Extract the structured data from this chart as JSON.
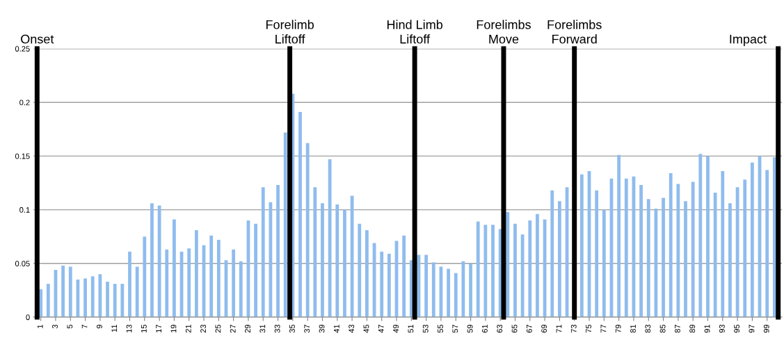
{
  "chart_data": {
    "type": "bar",
    "x": [
      1,
      2,
      3,
      4,
      5,
      6,
      7,
      8,
      9,
      10,
      11,
      12,
      13,
      14,
      15,
      16,
      17,
      18,
      19,
      20,
      21,
      22,
      23,
      24,
      25,
      26,
      27,
      28,
      29,
      30,
      31,
      32,
      33,
      34,
      35,
      36,
      37,
      38,
      39,
      40,
      41,
      42,
      43,
      44,
      45,
      46,
      47,
      48,
      49,
      50,
      51,
      52,
      53,
      54,
      55,
      56,
      57,
      58,
      59,
      60,
      61,
      62,
      63,
      64,
      65,
      66,
      67,
      68,
      69,
      70,
      71,
      72,
      73,
      74,
      75,
      76,
      77,
      78,
      79,
      80,
      81,
      82,
      83,
      84,
      85,
      86,
      87,
      88,
      89,
      90,
      91,
      92,
      93,
      94,
      95,
      96,
      97,
      98,
      99,
      100
    ],
    "series": [
      {
        "color": "#8fbcee",
        "values": [
          0.026,
          0.031,
          0.044,
          0.048,
          0.047,
          0.035,
          0.036,
          0.038,
          0.04,
          0.033,
          0.031,
          0.031,
          0.061,
          0.047,
          0.075,
          0.106,
          0.104,
          0.063,
          0.091,
          0.061,
          0.064,
          0.081,
          0.067,
          0.076,
          0.072,
          0.053,
          0.063,
          0.052,
          0.09,
          0.087,
          0.121,
          0.107,
          0.123,
          0.172,
          0.208,
          0.191,
          0.162,
          0.121,
          0.106,
          0.147,
          0.105,
          0.1,
          0.113,
          0.087,
          0.081,
          0.069,
          0.061,
          0.059,
          0.071,
          0.076,
          0.053,
          0.058,
          0.058,
          0.051,
          0.047,
          0.045,
          0.041,
          0.052,
          0.05,
          0.089,
          0.086,
          0.086,
          0.082,
          0.098,
          0.087,
          0.077,
          0.09,
          0.096,
          0.091,
          0.118,
          0.108,
          0.121,
          null,
          0.133,
          0.136,
          0.118,
          0.1,
          0.129,
          0.151,
          0.129,
          0.131,
          0.123,
          0.11,
          0.101,
          0.111,
          0.134,
          0.124,
          0.108,
          0.126,
          0.152,
          0.15,
          0.116,
          0.136,
          0.106,
          0.121,
          0.128,
          0.144,
          0.15,
          0.137,
          0.149
        ]
      }
    ],
    "xlim": [
      0,
      101
    ],
    "xticks": [
      1,
      3,
      5,
      7,
      9,
      11,
      13,
      15,
      17,
      19,
      21,
      23,
      25,
      27,
      29,
      31,
      33,
      35,
      37,
      39,
      41,
      43,
      45,
      47,
      49,
      51,
      53,
      55,
      57,
      59,
      61,
      63,
      65,
      67,
      69,
      71,
      73,
      75,
      77,
      79,
      81,
      83,
      85,
      87,
      89,
      91,
      93,
      95,
      97,
      99
    ],
    "ylim": [
      0,
      0.25
    ],
    "yticks": [
      0,
      0.05,
      0.1,
      0.15,
      0.2,
      0.25
    ],
    "grid": "y",
    "legend": false,
    "ref_lines": [
      {
        "axis": "x",
        "value": 0.5,
        "label": "Onset",
        "color": "#000000"
      },
      {
        "axis": "x",
        "value": 34.6,
        "label": "Forelimb\nLiftoff",
        "color": "#000000"
      },
      {
        "axis": "x",
        "value": 51.45,
        "label": "Hind Limb\nLiftoff",
        "color": "#000000"
      },
      {
        "axis": "x",
        "value": 63.45,
        "label": "Forelimbs\nMove",
        "color": "#000000"
      },
      {
        "axis": "x",
        "value": 73,
        "label": "Forelimbs\nForward",
        "color": "#000000"
      },
      {
        "axis": "x",
        "value": 100.5,
        "label": "Impact",
        "color": "#000000"
      }
    ]
  }
}
